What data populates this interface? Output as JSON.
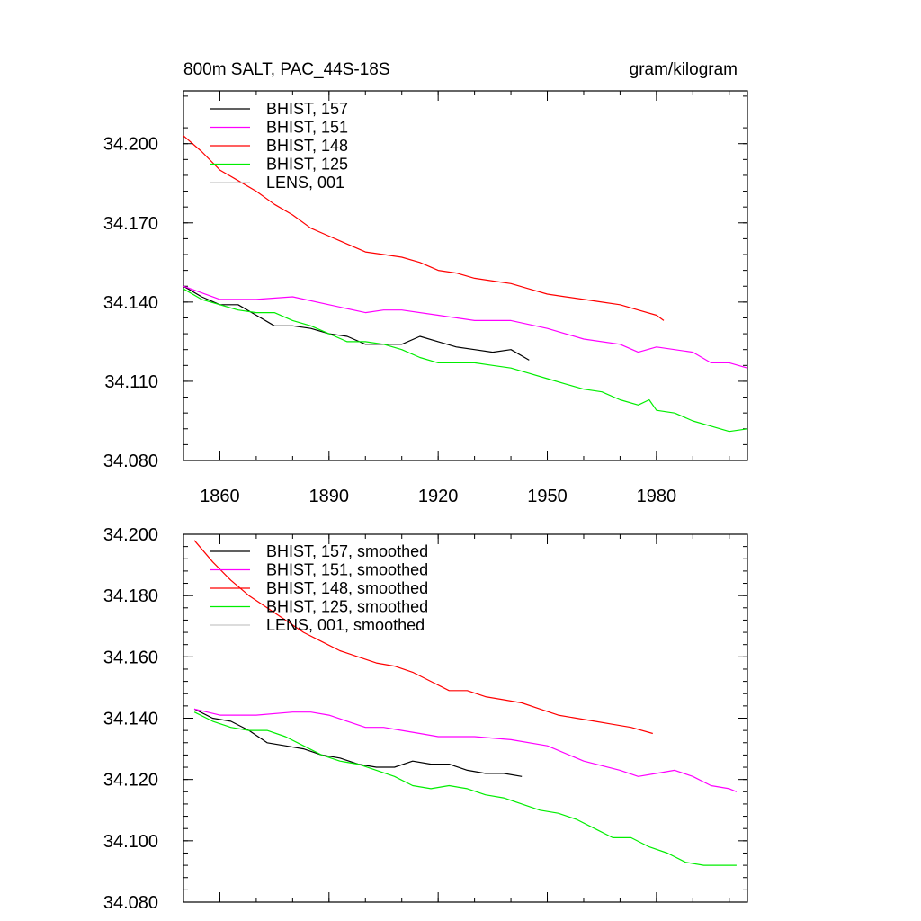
{
  "chart_data": [
    {
      "type": "line",
      "title": "800m SALT, PAC_44S-18S",
      "units": "gram/kilogram",
      "xlim": [
        1850,
        2005
      ],
      "ylim": [
        34.08,
        34.22
      ],
      "xticks": [
        1860,
        1890,
        1920,
        1950,
        1980
      ],
      "xtick_labels": [
        "1860",
        "1890",
        "1920",
        "1950",
        "1980"
      ],
      "yticks": [
        34.08,
        34.11,
        34.14,
        34.17,
        34.2
      ],
      "ytick_labels": [
        "34.080",
        "34.110",
        "34.140",
        "34.170",
        "34.200"
      ],
      "legend_placement": "top-left",
      "series": [
        {
          "name": "BHIST, 157",
          "color": "#000000",
          "x": [
            1850,
            1855,
            1860,
            1865,
            1870,
            1875,
            1880,
            1885,
            1890,
            1895,
            1900,
            1905,
            1910,
            1915,
            1920,
            1925,
            1930,
            1935,
            1940,
            1945
          ],
          "y": [
            34.146,
            34.142,
            34.139,
            34.139,
            34.135,
            34.131,
            34.131,
            34.13,
            34.128,
            34.127,
            34.124,
            34.124,
            34.124,
            34.127,
            34.125,
            34.123,
            34.122,
            34.121,
            34.122,
            34.118
          ]
        },
        {
          "name": "BHIST, 151",
          "color": "#ff00ff",
          "x": [
            1850,
            1860,
            1870,
            1880,
            1890,
            1900,
            1905,
            1910,
            1920,
            1930,
            1940,
            1950,
            1960,
            1970,
            1975,
            1980,
            1990,
            1995,
            2000,
            2005
          ],
          "y": [
            34.146,
            34.141,
            34.141,
            34.142,
            34.139,
            34.136,
            34.137,
            34.137,
            34.135,
            34.133,
            34.133,
            34.13,
            34.126,
            34.124,
            34.121,
            34.123,
            34.121,
            34.117,
            34.117,
            34.115
          ]
        },
        {
          "name": "BHIST, 148",
          "color": "#ff0000",
          "x": [
            1850,
            1855,
            1860,
            1865,
            1870,
            1875,
            1880,
            1885,
            1890,
            1895,
            1900,
            1905,
            1910,
            1915,
            1920,
            1925,
            1930,
            1935,
            1940,
            1945,
            1950,
            1955,
            1960,
            1965,
            1970,
            1975,
            1980,
            1982
          ],
          "y": [
            34.203,
            34.197,
            34.19,
            34.186,
            34.182,
            34.177,
            34.173,
            34.168,
            34.165,
            34.162,
            34.159,
            34.158,
            34.157,
            34.155,
            34.152,
            34.151,
            34.149,
            34.148,
            34.147,
            34.145,
            34.143,
            34.142,
            34.141,
            34.14,
            34.139,
            34.137,
            34.135,
            34.133
          ]
        },
        {
          "name": "BHIST, 125",
          "color": "#00ee00",
          "x": [
            1850,
            1855,
            1860,
            1865,
            1870,
            1875,
            1880,
            1885,
            1890,
            1895,
            1900,
            1905,
            1910,
            1915,
            1920,
            1925,
            1930,
            1935,
            1940,
            1945,
            1950,
            1955,
            1960,
            1965,
            1970,
            1975,
            1978,
            1980,
            1985,
            1990,
            1995,
            2000,
            2005
          ],
          "y": [
            34.145,
            34.141,
            34.139,
            34.137,
            34.136,
            34.136,
            34.133,
            34.131,
            34.128,
            34.125,
            34.125,
            34.124,
            34.122,
            34.119,
            34.117,
            34.117,
            34.117,
            34.116,
            34.115,
            34.113,
            34.111,
            34.109,
            34.107,
            34.106,
            34.103,
            34.101,
            34.103,
            34.099,
            34.098,
            34.095,
            34.093,
            34.091,
            34.092
          ]
        },
        {
          "name": "LENS, 001",
          "color": "#c8c8c8",
          "x": [],
          "y": []
        }
      ]
    },
    {
      "type": "line",
      "title": "",
      "xlim": [
        1850,
        2005
      ],
      "ylim": [
        34.08,
        34.2
      ],
      "xticks": [
        1860,
        1890,
        1920,
        1950,
        1980
      ],
      "xtick_labels": [],
      "yticks": [
        34.08,
        34.1,
        34.12,
        34.14,
        34.16,
        34.18,
        34.2
      ],
      "ytick_labels": [
        "34.080",
        "34.100",
        "34.120",
        "34.140",
        "34.160",
        "34.180",
        "34.200"
      ],
      "legend_placement": "top-left",
      "series": [
        {
          "name": "BHIST, 157, smoothed",
          "color": "#000000",
          "x": [
            1853,
            1858,
            1863,
            1868,
            1873,
            1878,
            1883,
            1888,
            1893,
            1898,
            1903,
            1908,
            1913,
            1918,
            1923,
            1928,
            1933,
            1938,
            1943
          ],
          "y": [
            34.143,
            34.14,
            34.139,
            34.136,
            34.132,
            34.131,
            34.13,
            34.128,
            34.127,
            34.125,
            34.124,
            34.124,
            34.126,
            34.125,
            34.125,
            34.123,
            34.122,
            34.122,
            34.121
          ]
        },
        {
          "name": "BHIST, 151, smoothed",
          "color": "#ff00ff",
          "x": [
            1853,
            1860,
            1870,
            1880,
            1885,
            1890,
            1895,
            1900,
            1905,
            1910,
            1915,
            1920,
            1930,
            1940,
            1950,
            1960,
            1970,
            1975,
            1980,
            1985,
            1990,
            1995,
            2000,
            2002
          ],
          "y": [
            34.143,
            34.141,
            34.141,
            34.142,
            34.142,
            34.141,
            34.139,
            34.137,
            34.137,
            34.136,
            34.135,
            34.134,
            34.134,
            34.133,
            34.131,
            34.126,
            34.123,
            34.121,
            34.122,
            34.123,
            34.121,
            34.118,
            34.117,
            34.116
          ]
        },
        {
          "name": "BHIST, 148, smoothed",
          "color": "#ff0000",
          "x": [
            1853,
            1858,
            1863,
            1868,
            1873,
            1878,
            1883,
            1888,
            1893,
            1898,
            1903,
            1908,
            1913,
            1918,
            1923,
            1928,
            1933,
            1938,
            1943,
            1948,
            1953,
            1958,
            1963,
            1968,
            1973,
            1979
          ],
          "y": [
            34.198,
            34.191,
            34.185,
            34.18,
            34.176,
            34.172,
            34.168,
            34.165,
            34.162,
            34.16,
            34.158,
            34.157,
            34.155,
            34.152,
            34.149,
            34.149,
            34.147,
            34.146,
            34.145,
            34.143,
            34.141,
            34.14,
            34.139,
            34.138,
            34.137,
            34.135
          ]
        },
        {
          "name": "BHIST, 125, smoothed",
          "color": "#00ee00",
          "x": [
            1853,
            1858,
            1863,
            1868,
            1873,
            1878,
            1883,
            1888,
            1893,
            1898,
            1903,
            1908,
            1913,
            1918,
            1923,
            1928,
            1933,
            1938,
            1943,
            1948,
            1953,
            1958,
            1963,
            1968,
            1973,
            1978,
            1983,
            1988,
            1993,
            1998,
            2002
          ],
          "y": [
            34.142,
            34.139,
            34.137,
            34.136,
            34.136,
            34.134,
            34.131,
            34.128,
            34.126,
            34.125,
            34.123,
            34.121,
            34.118,
            34.117,
            34.118,
            34.117,
            34.115,
            34.114,
            34.112,
            34.11,
            34.109,
            34.107,
            34.104,
            34.101,
            34.101,
            34.098,
            34.096,
            34.093,
            34.092,
            34.092,
            34.092
          ]
        },
        {
          "name": "LENS, 001, smoothed",
          "color": "#c8c8c8",
          "x": [],
          "y": []
        }
      ]
    }
  ]
}
